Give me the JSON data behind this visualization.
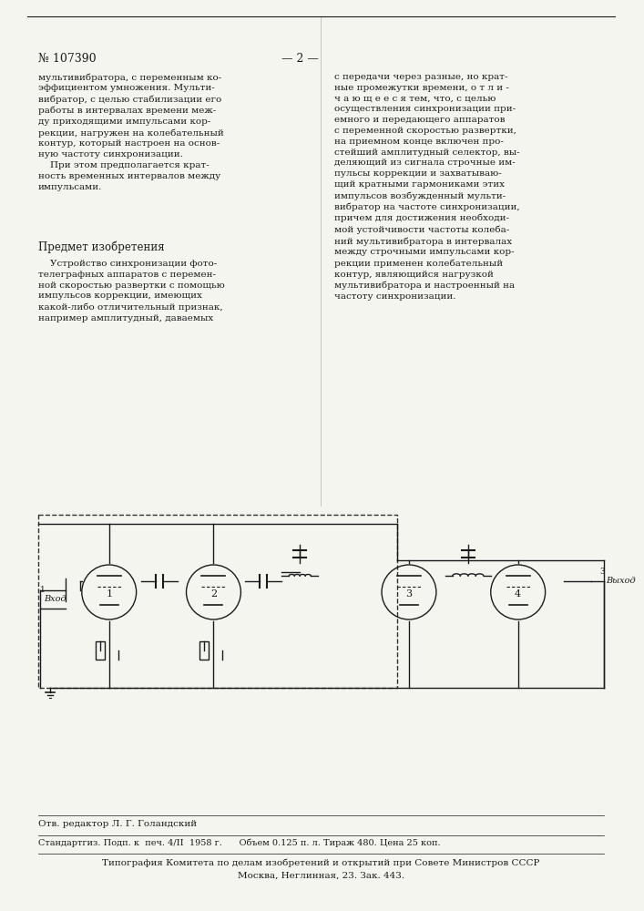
{
  "page_number": "№ 107390",
  "page_num_right": "— 2 —",
  "bg_color": "#f5f5f0",
  "text_color": "#1a1a1a",
  "left_column_text": "мультивибратора, с переменным ко-\nэффициентом умножения. Мульти-\nвибратор, с целью стабилизации его\nработы в интервалах времени меж-\nду приходящими импульсами кор-\nрекции, нагружен на колебательный\nконтур, который настроен на основ-\nную частоту синхронизации.\n    При этом предполагается крат-\nность временных интервалов между\nимпульсами.",
  "section_title": "Предмет изобретения",
  "subject_text": "    Устройство синхронизации фото-\nтелеграфных аппаратов с перемен-\nной скоростью развертки с помощью\nимпульсов коррекции, имеющих\nкакой-либо отличительный признак,\nнапример амплитудный, даваемых",
  "right_column_text": "с передачи через разные, но крат-\nные промежутки времени, о т л и -\nч а ю щ е е с я тем, что, с целью\nосуществления синхронизации при-\nемного и передающего аппаратов\nс переменной скоростью развертки,\nна приемном конце включен про-\nстейший амплитудный селектор, вы-\nделяющий из сигнала строчные им-\nпульсы коррекции и захватываю-\nщий кратными гармониками этих\nимпульсов возбужденный мульти-\nвибратор на частоте синхронизации,\nпричем для достижения необходи-\nмой устойчивости частоты колеба-\nний мультивибратора в интервалах\nмежду строчными импульсами кор-\nрекции применен колебательный\nконтур, являющийся нагрузкой\nмультивибратора и настроенный на\nчастоту синхронизации.",
  "footer_editor": "Отв. редактор Л. Г. Голандский",
  "footer_line1": "Стандартгиз. Подп. к  печ. 4/II  1958 г.      Объем 0.125 п. л. Тираж 480. Цена 25 коп.",
  "footer_line2": "Типография Комитета по делам изобретений и открытий при Совете Министров СССР",
  "footer_line3": "Москва, Неглинная, 23. Зак. 443."
}
